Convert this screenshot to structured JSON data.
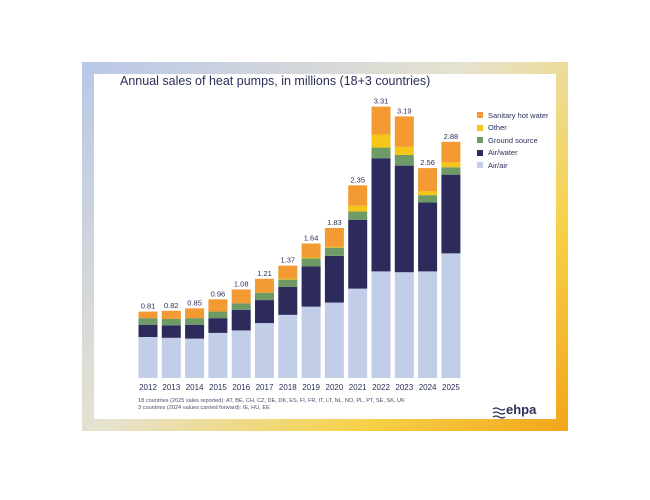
{
  "chart_data": {
    "type": "bar",
    "stacked": true,
    "title": "Annual sales of heat pumps, in millions (18+3 countries)",
    "categories": [
      "2012",
      "2013",
      "2014",
      "2015",
      "2016",
      "2017",
      "2018",
      "2019",
      "2020",
      "2021",
      "2022",
      "2023",
      "2024",
      "2025"
    ],
    "totals": [
      0.81,
      0.82,
      0.85,
      0.96,
      1.08,
      1.21,
      1.37,
      1.64,
      1.83,
      2.35,
      3.31,
      3.19,
      2.56,
      2.88
    ],
    "series": [
      {
        "name": "Air/air",
        "color": "#c2cde8",
        "values": [
          0.5,
          0.49,
          0.48,
          0.55,
          0.58,
          0.67,
          0.77,
          0.87,
          0.92,
          1.09,
          1.3,
          1.29,
          1.3,
          1.52
        ]
      },
      {
        "name": "Air/water",
        "color": "#2c2b5c",
        "values": [
          0.15,
          0.15,
          0.17,
          0.18,
          0.25,
          0.28,
          0.34,
          0.49,
          0.57,
          0.84,
          1.38,
          1.3,
          0.84,
          0.96
        ]
      },
      {
        "name": "Ground source",
        "color": "#6e9a66",
        "values": [
          0.08,
          0.08,
          0.08,
          0.08,
          0.08,
          0.09,
          0.09,
          0.1,
          0.1,
          0.1,
          0.13,
          0.13,
          0.09,
          0.09
        ]
      },
      {
        "name": "Other",
        "color": "#f5c518",
        "values": [
          0.0,
          0.0,
          0.0,
          0.0,
          0.0,
          0.0,
          0.01,
          0.01,
          0.01,
          0.07,
          0.16,
          0.1,
          0.05,
          0.06
        ]
      },
      {
        "name": "Sanitary hot water",
        "color": "#f39a33",
        "values": [
          0.08,
          0.1,
          0.12,
          0.15,
          0.17,
          0.17,
          0.16,
          0.17,
          0.23,
          0.25,
          0.34,
          0.37,
          0.28,
          0.25
        ]
      }
    ],
    "legend_order": [
      "Sanitary hot water",
      "Other",
      "Ground source",
      "Air/water",
      "Air/air"
    ],
    "ylim": [
      0,
      3.5
    ],
    "grid": false,
    "legend_position": "top-right"
  },
  "footnote": {
    "line1": "18 countries (2025 sales reported): AT, BE, CH, CZ, DE, DK, ES, FI, FR, IT, LT, NL, NO, PL, PT, SE, SK, UK",
    "line2": "3 countries (2024 values carried forward): IE, HU, EE"
  },
  "logo": {
    "text": "ehpa"
  },
  "colors": {
    "text": "#2b2f5a"
  }
}
